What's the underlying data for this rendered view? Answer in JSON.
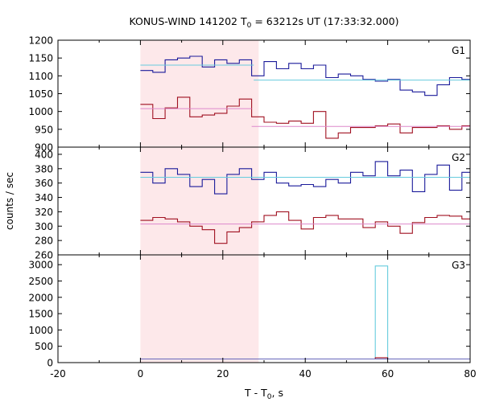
{
  "title": {
    "prefix": "KONUS-WIND 141202 T",
    "sub": "0",
    "suffix": " = 63212s UT (17:33:32.000)"
  },
  "xlabel": {
    "prefix": "T - T",
    "sub": "0",
    "suffix": ", s"
  },
  "ylabel": "counts / sec",
  "colors": {
    "series_blue": "#1a1a9a",
    "fit_blue": "#66ccdd",
    "series_red": "#a01020",
    "fit_red": "#dd88cc",
    "g3_series": "#66ccdd",
    "g3_base": "#6666bb",
    "spike_red": "#a01020",
    "shade": "#fde8ea"
  },
  "chart_data": {
    "type": "line",
    "style": "step",
    "xlim": [
      -20,
      80
    ],
    "x_ticks": [
      -20,
      0,
      20,
      40,
      60,
      80
    ],
    "shaded_interval": [
      0,
      28.7
    ],
    "bin_edges": [
      0,
      3,
      6,
      9,
      12,
      15,
      18,
      21,
      24,
      27,
      30,
      33,
      36,
      39,
      42,
      45,
      48,
      51,
      54,
      57,
      60,
      63,
      66,
      69,
      72,
      75,
      78,
      81
    ],
    "panels": [
      {
        "label": "G1",
        "ylim": [
          900,
          1200
        ],
        "y_ticks": [
          900,
          950,
          1000,
          1050,
          1100,
          1150,
          1200
        ],
        "series": [
          {
            "color_key": "series_blue",
            "values": [
              1115,
              1110,
              1145,
              1150,
              1155,
              1125,
              1145,
              1135,
              1145,
              1100,
              1140,
              1120,
              1135,
              1120,
              1130,
              1095,
              1105,
              1100,
              1090,
              1085,
              1090,
              1060,
              1055,
              1045,
              1075,
              1095,
              1090
            ]
          },
          {
            "color_key": "series_red",
            "values": [
              1020,
              980,
              1010,
              1040,
              985,
              990,
              995,
              1015,
              1035,
              985,
              970,
              967,
              973,
              967,
              1000,
              925,
              940,
              955,
              955,
              960,
              965,
              940,
              955,
              955,
              960,
              950,
              960
            ]
          }
        ],
        "fits": [
          {
            "color_key": "fit_blue",
            "segments": [
              [
                0,
                27.5,
                1130
              ],
              [
                27.5,
                81,
                1088
              ]
            ]
          },
          {
            "color_key": "fit_red",
            "segments": [
              [
                0,
                27,
                1008
              ],
              [
                27,
                81,
                958
              ]
            ]
          }
        ]
      },
      {
        "label": "G2",
        "ylim": [
          260,
          410
        ],
        "y_ticks": [
          260,
          280,
          300,
          320,
          340,
          360,
          380,
          400
        ],
        "series": [
          {
            "color_key": "series_blue",
            "values": [
              375,
              360,
              380,
              372,
              355,
              365,
              345,
              372,
              380,
              365,
              375,
              360,
              356,
              358,
              355,
              365,
              360,
              375,
              370,
              390,
              370,
              378,
              348,
              372,
              385,
              350,
              375
            ]
          },
          {
            "color_key": "series_red",
            "values": [
              308,
              312,
              310,
              306,
              300,
              295,
              276,
              292,
              298,
              306,
              315,
              320,
              308,
              296,
              312,
              315,
              310,
              310,
              298,
              306,
              300,
              290,
              305,
              312,
              315,
              314,
              310
            ]
          }
        ],
        "fits": [
          {
            "color_key": "fit_blue",
            "segments": [
              [
                0,
                81,
                368
              ]
            ]
          },
          {
            "color_key": "fit_red",
            "segments": [
              [
                0,
                81,
                303
              ]
            ]
          }
        ]
      },
      {
        "label": "G3",
        "ylim": [
          0,
          3300
        ],
        "y_ticks": [
          0,
          500,
          1000,
          1500,
          2000,
          2500,
          3000
        ],
        "series": [
          {
            "color_key": "g3_series",
            "values": [
              110,
              110,
              110,
              110,
              110,
              110,
              110,
              110,
              110,
              110,
              110,
              110,
              110,
              110,
              110,
              110,
              110,
              110,
              110,
              2960,
              110,
              110,
              110,
              110,
              110,
              110,
              110
            ]
          },
          {
            "color_key": "spike_red",
            "values": [
              110,
              110,
              110,
              110,
              110,
              110,
              110,
              110,
              110,
              110,
              110,
              110,
              110,
              110,
              110,
              110,
              110,
              110,
              110,
              150,
              110,
              110,
              110,
              110,
              110,
              110,
              110
            ]
          }
        ],
        "fits": [
          {
            "color_key": "g3_base",
            "segments": [
              [
                0,
                81,
                110
              ]
            ]
          }
        ]
      }
    ]
  }
}
